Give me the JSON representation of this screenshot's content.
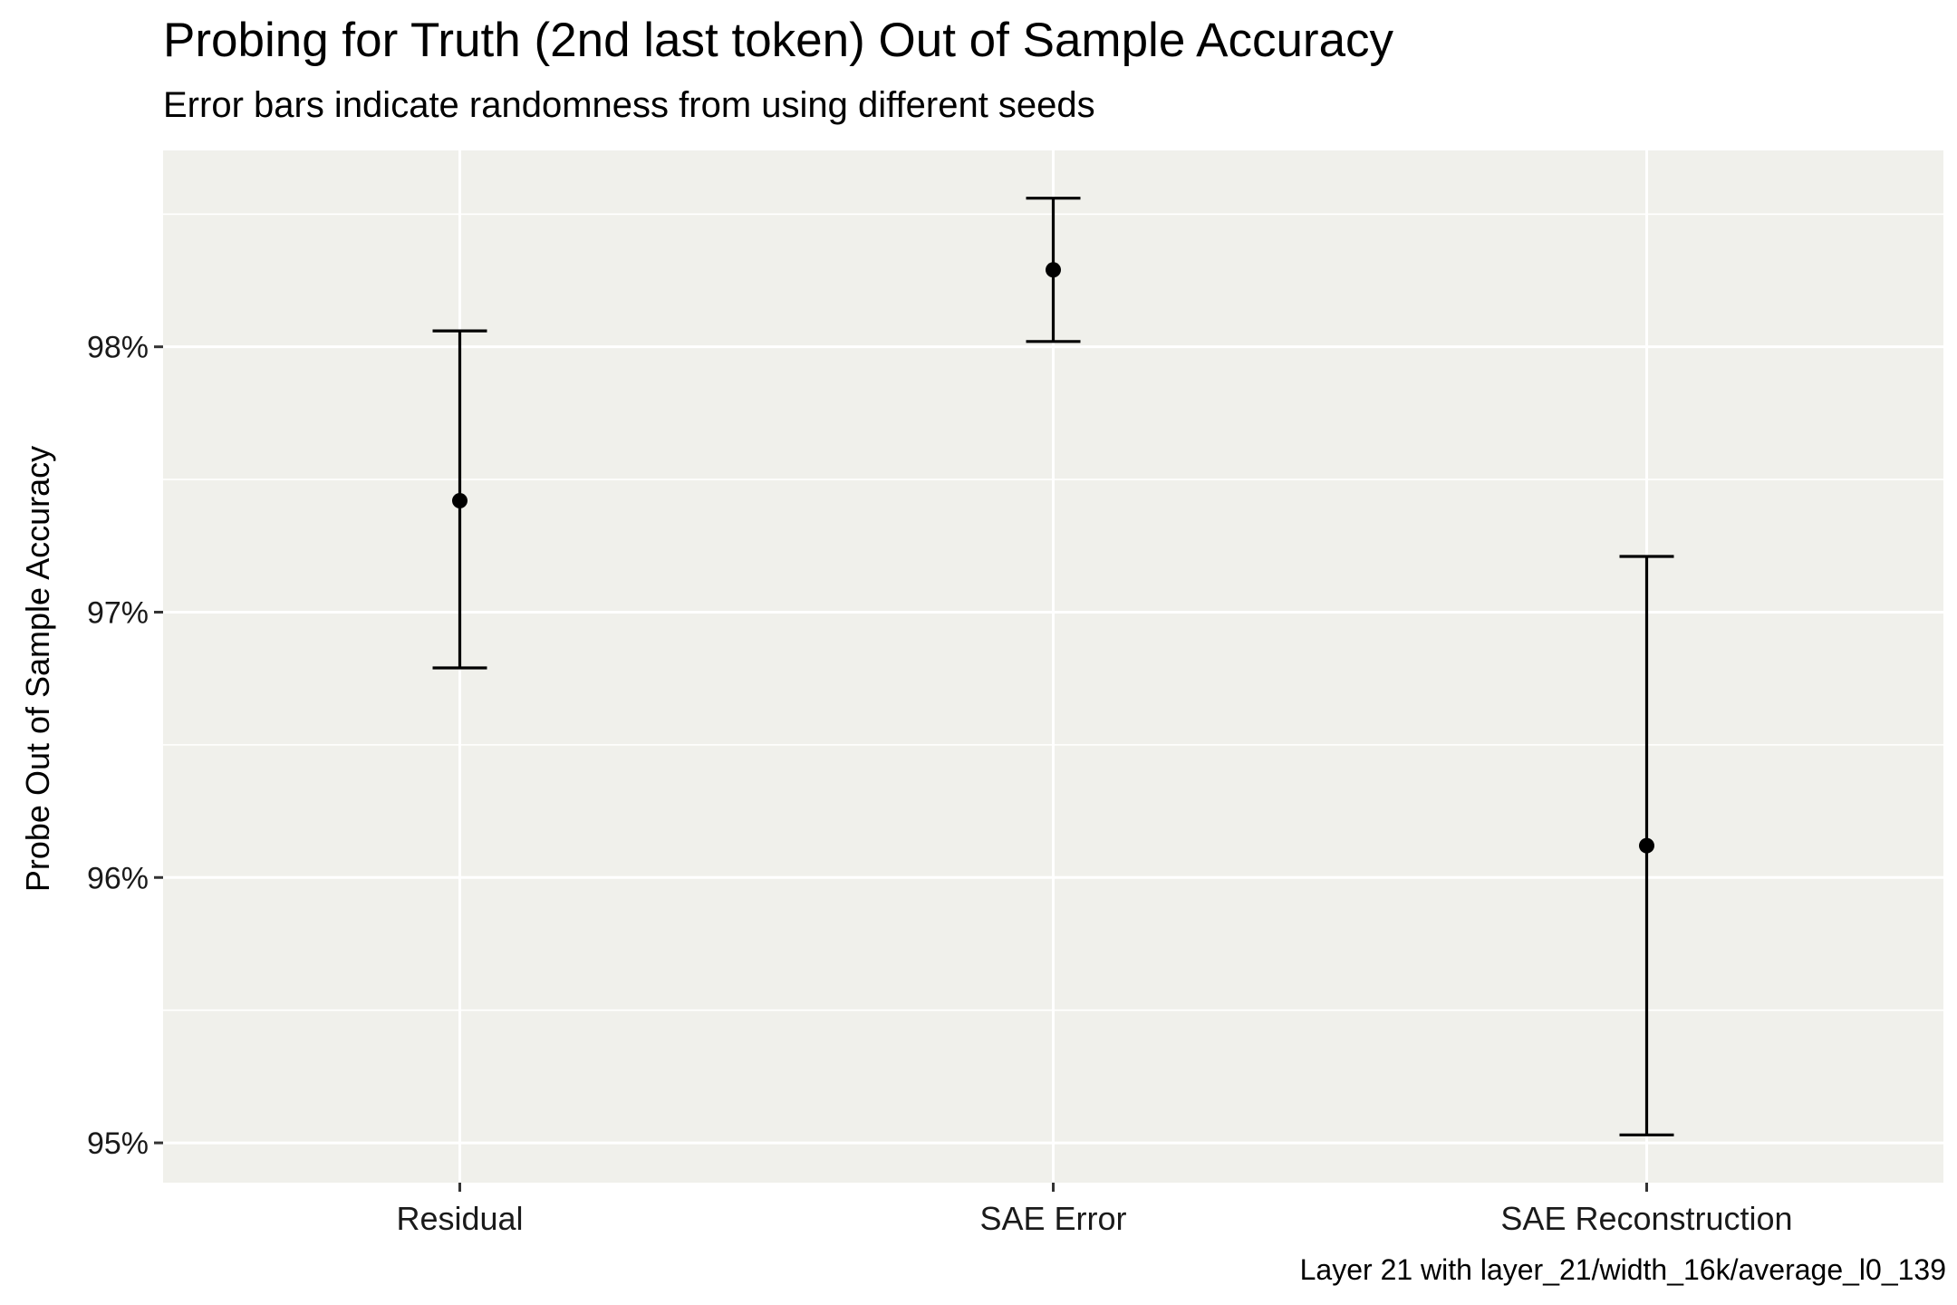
{
  "chart_data": {
    "type": "scatter",
    "title": "Probing for Truth (2nd last token) Out of Sample Accuracy",
    "subtitle": "Error bars indicate randomness from using different seeds",
    "xlabel": "",
    "ylabel": "Probe Out of Sample Accuracy",
    "caption": "Layer 21 with layer_21/width_16k/average_l0_139",
    "categories": [
      "Residual",
      "SAE Error",
      "SAE Reconstruction"
    ],
    "points": [
      {
        "category": "Residual",
        "value": 97.42,
        "lower": 96.79,
        "upper": 98.06
      },
      {
        "category": "SAE Error",
        "value": 98.29,
        "lower": 98.02,
        "upper": 98.56
      },
      {
        "category": "SAE Reconstruction",
        "value": 96.12,
        "lower": 95.03,
        "upper": 97.21
      }
    ],
    "ylim": [
      94.85,
      98.74
    ],
    "y_ticks": [
      95,
      96,
      97,
      98
    ],
    "y_tick_labels": [
      "95%",
      "96%",
      "97%",
      "98%"
    ],
    "grid": true,
    "colors": {
      "panel_background": "#f0f0eb",
      "grid_line": "#ffffff",
      "mark": "#000000"
    }
  }
}
